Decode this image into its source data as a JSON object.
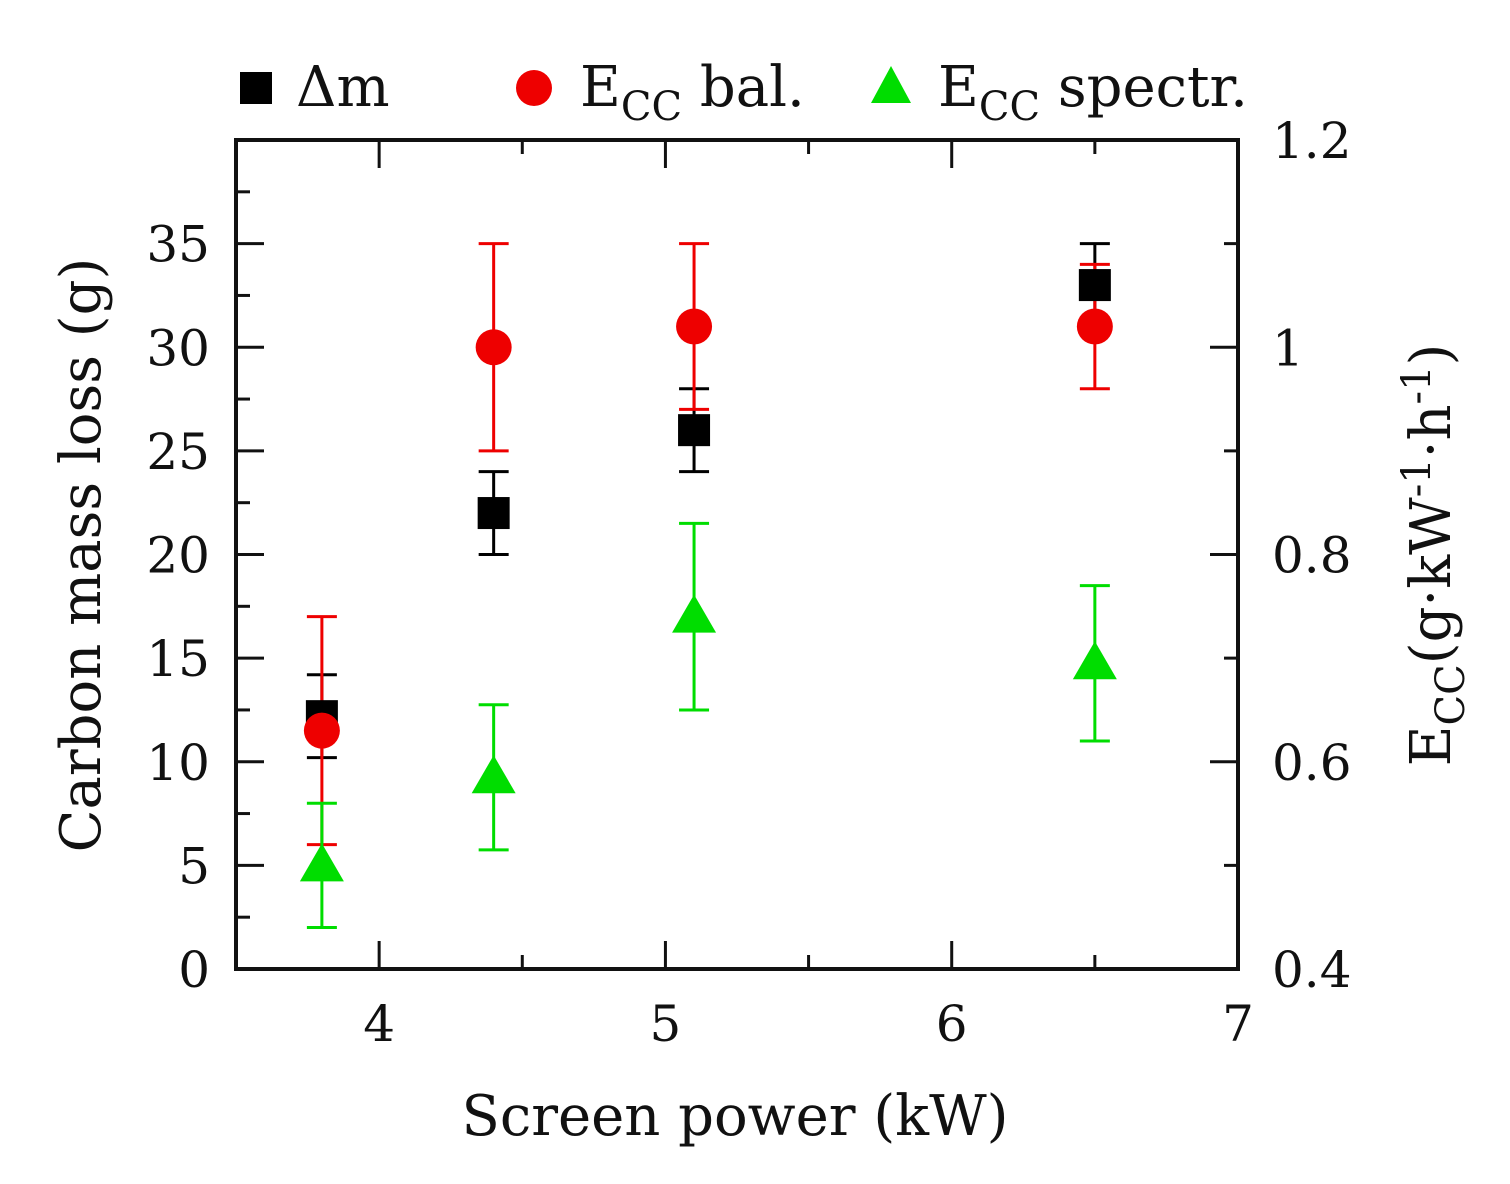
{
  "chart_data": {
    "type": "scatter",
    "xlabel": "Screen power (kW)",
    "ylabel_left": "Carbon mass loss (g)",
    "ylabel_right": {
      "main": "E",
      "sub": "CC",
      "unit_prefix": "(g·kW",
      "exp1": "-1",
      "mid": "·h",
      "exp2": "-1",
      "unit_suffix": ")"
    },
    "xlim": [
      3.5,
      7
    ],
    "ylim_left": [
      0,
      40
    ],
    "ylim_right": [
      0.4,
      1.2
    ],
    "x_ticks": [
      {
        "value": 4,
        "label": "4"
      },
      {
        "value": 5,
        "label": "5"
      },
      {
        "value": 6,
        "label": "6"
      },
      {
        "value": 7,
        "label": "7"
      }
    ],
    "y_left_ticks": [
      {
        "value": 0,
        "label": "0"
      },
      {
        "value": 5,
        "label": "5"
      },
      {
        "value": 10,
        "label": "10"
      },
      {
        "value": 15,
        "label": "15"
      },
      {
        "value": 20,
        "label": "20"
      },
      {
        "value": 25,
        "label": "25"
      },
      {
        "value": 30,
        "label": "30"
      },
      {
        "value": 35,
        "label": "35"
      }
    ],
    "y_right_ticks": [
      {
        "value": 0.4,
        "label": "0.4"
      },
      {
        "value": 0.6,
        "label": "0.6"
      },
      {
        "value": 0.8,
        "label": "0.8"
      },
      {
        "value": 1.0,
        "label": "1"
      },
      {
        "value": 1.2,
        "label": "1.2"
      }
    ],
    "legend_position": "top",
    "series": [
      {
        "name": "Δm",
        "legend_main": "Δm",
        "legend_sub": "",
        "legend_after": "",
        "axis": "left",
        "marker": "square",
        "color": "#000000",
        "points": [
          {
            "x": 3.8,
            "y": 12.2,
            "err": 2
          },
          {
            "x": 4.4,
            "y": 22,
            "err": 2
          },
          {
            "x": 5.1,
            "y": 26,
            "err": 2
          },
          {
            "x": 6.5,
            "y": 33,
            "err": 2
          }
        ]
      },
      {
        "name": "ECC bal.",
        "legend_main": "E",
        "legend_sub": "CC",
        "legend_after": " bal.",
        "axis": "right",
        "marker": "circle",
        "color": "#ee0000",
        "points": [
          {
            "x": 3.8,
            "y": 0.63,
            "err": 0.11
          },
          {
            "x": 4.4,
            "y": 1.0,
            "err": 0.1
          },
          {
            "x": 5.1,
            "y": 1.02,
            "err": 0.08
          },
          {
            "x": 6.5,
            "y": 1.02,
            "err": 0.06
          }
        ]
      },
      {
        "name": "ECC spectr.",
        "legend_main": "E",
        "legend_sub": "CC",
        "legend_after": " spectr.",
        "axis": "right",
        "marker": "triangle",
        "color": "#00dd00",
        "points": [
          {
            "x": 3.8,
            "y": 0.5,
            "err": 0.06
          },
          {
            "x": 4.4,
            "y": 0.585,
            "err": 0.07
          },
          {
            "x": 5.1,
            "y": 0.74,
            "err": 0.09
          },
          {
            "x": 6.5,
            "y": 0.695,
            "err": 0.075
          }
        ]
      }
    ]
  }
}
